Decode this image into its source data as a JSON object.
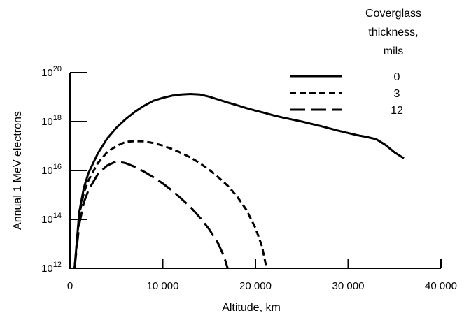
{
  "chart_data": {
    "type": "line",
    "title": "",
    "xlabel": "Altitude, km",
    "ylabel": "Annual 1 MeV electrons",
    "xlim": [
      0,
      40000
    ],
    "ylim_exponent": [
      12,
      20
    ],
    "yscale": "log",
    "x_ticks": [
      {
        "value": 0,
        "label": "0"
      },
      {
        "value": 10000,
        "label": "10 000"
      },
      {
        "value": 20000,
        "label": "20 000"
      },
      {
        "value": 30000,
        "label": "30 000"
      },
      {
        "value": 40000,
        "label": "40 000"
      }
    ],
    "y_ticks": [
      {
        "exp": 12,
        "base": "10",
        "sup": "12"
      },
      {
        "exp": 14,
        "base": "10",
        "sup": "14"
      },
      {
        "exp": 16,
        "base": "10",
        "sup": "16"
      },
      {
        "exp": 18,
        "base": "10",
        "sup": "18"
      },
      {
        "exp": 20,
        "base": "10",
        "sup": "20"
      }
    ],
    "grid": false,
    "legend_position": "top-right",
    "legend_title": [
      "Coverglass",
      "thickness,",
      "mils"
    ],
    "series": [
      {
        "name": "0",
        "dash": "solid",
        "points": [
          [
            500,
            12
          ],
          [
            1000,
            14.3
          ],
          [
            1500,
            15.3
          ],
          [
            2000,
            15.9
          ],
          [
            3000,
            16.7
          ],
          [
            4000,
            17.3
          ],
          [
            5000,
            17.75
          ],
          [
            6000,
            18.1
          ],
          [
            7000,
            18.4
          ],
          [
            8000,
            18.65
          ],
          [
            9000,
            18.85
          ],
          [
            10000,
            18.97
          ],
          [
            11000,
            19.06
          ],
          [
            12000,
            19.11
          ],
          [
            13000,
            19.13
          ],
          [
            14000,
            19.11
          ],
          [
            15000,
            19.02
          ],
          [
            16000,
            18.9
          ],
          [
            17000,
            18.78
          ],
          [
            18000,
            18.67
          ],
          [
            19000,
            18.55
          ],
          [
            20000,
            18.45
          ],
          [
            21000,
            18.35
          ],
          [
            22000,
            18.25
          ],
          [
            23000,
            18.16
          ],
          [
            24000,
            18.08
          ],
          [
            25000,
            18.0
          ],
          [
            26000,
            17.91
          ],
          [
            27000,
            17.82
          ],
          [
            28000,
            17.72
          ],
          [
            29000,
            17.62
          ],
          [
            30000,
            17.53
          ],
          [
            31000,
            17.44
          ],
          [
            32000,
            17.37
          ],
          [
            33000,
            17.28
          ],
          [
            34000,
            17.05
          ],
          [
            35000,
            16.74
          ],
          [
            36000,
            16.5
          ]
        ]
      },
      {
        "name": "3",
        "dash": "short",
        "points": [
          [
            500,
            12
          ],
          [
            1000,
            14.2
          ],
          [
            1500,
            15.1
          ],
          [
            2000,
            15.6
          ],
          [
            3000,
            16.3
          ],
          [
            4000,
            16.75
          ],
          [
            5000,
            17.0
          ],
          [
            6000,
            17.17
          ],
          [
            7000,
            17.2
          ],
          [
            8000,
            17.19
          ],
          [
            9000,
            17.12
          ],
          [
            10000,
            17.02
          ],
          [
            11000,
            16.88
          ],
          [
            12000,
            16.72
          ],
          [
            13000,
            16.53
          ],
          [
            14000,
            16.3
          ],
          [
            15000,
            16.03
          ],
          [
            16000,
            15.72
          ],
          [
            17000,
            15.38
          ],
          [
            18000,
            14.95
          ],
          [
            19000,
            14.4
          ],
          [
            20000,
            13.65
          ],
          [
            20700,
            12.9
          ],
          [
            21200,
            12
          ]
        ]
      },
      {
        "name": "12",
        "dash": "long",
        "points": [
          [
            500,
            12
          ],
          [
            1000,
            13.8
          ],
          [
            1500,
            14.7
          ],
          [
            2000,
            15.2
          ],
          [
            3000,
            15.85
          ],
          [
            4000,
            16.2
          ],
          [
            5000,
            16.37
          ],
          [
            6000,
            16.3
          ],
          [
            7000,
            16.15
          ],
          [
            8000,
            15.95
          ],
          [
            9000,
            15.72
          ],
          [
            10000,
            15.47
          ],
          [
            11000,
            15.18
          ],
          [
            12000,
            14.85
          ],
          [
            13000,
            14.5
          ],
          [
            14000,
            14.08
          ],
          [
            15000,
            13.6
          ],
          [
            16000,
            13.0
          ],
          [
            16600,
            12.5
          ],
          [
            17000,
            12
          ]
        ]
      }
    ]
  }
}
